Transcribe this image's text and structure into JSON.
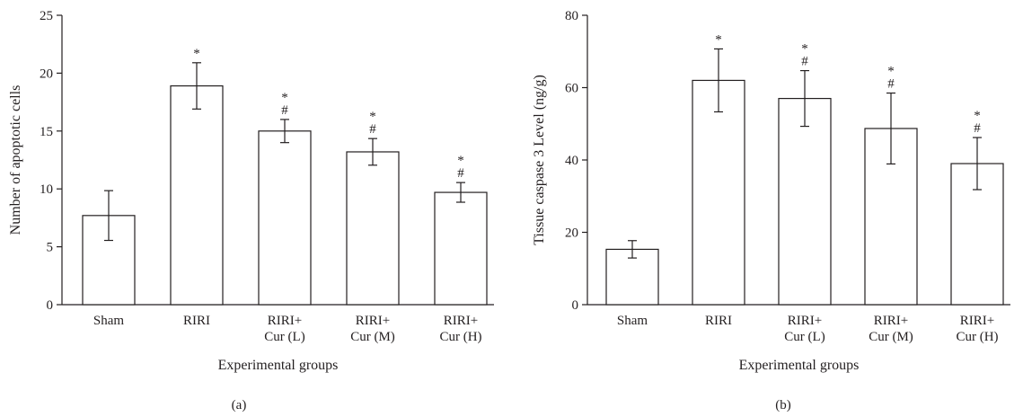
{
  "chart_data": [
    {
      "type": "bar",
      "panel_label": "(a)",
      "categories": [
        [
          "Sham"
        ],
        [
          "RIRI"
        ],
        [
          "RIRI+",
          "Cur (L)"
        ],
        [
          "RIRI+",
          "Cur (M)"
        ],
        [
          "RIRI+",
          "Cur (H)"
        ]
      ],
      "values": [
        7.7,
        18.9,
        15.0,
        13.2,
        9.7
      ],
      "errors": [
        2.15,
        2.0,
        1.0,
        1.15,
        0.85
      ],
      "annotations": [
        [],
        [
          "*"
        ],
        [
          "*",
          "#"
        ],
        [
          "*",
          "#"
        ],
        [
          "*",
          "#"
        ]
      ],
      "xlabel": "Experimental groups",
      "ylabel": "Number of apoptotic cells",
      "ylim": [
        0,
        25
      ],
      "yticks": [
        0,
        5,
        10,
        15,
        20,
        25
      ],
      "grid": false
    },
    {
      "type": "bar",
      "panel_label": "(b)",
      "categories": [
        [
          "Sham"
        ],
        [
          "RIRI"
        ],
        [
          "RIRI+",
          "Cur (L)"
        ],
        [
          "RIRI+",
          "Cur (M)"
        ],
        [
          "RIRI+",
          "Cur (H)"
        ]
      ],
      "values": [
        15.3,
        62.0,
        57.0,
        48.7,
        39.0
      ],
      "errors": [
        2.4,
        8.7,
        7.7,
        9.8,
        7.2
      ],
      "annotations": [
        [],
        [
          "*"
        ],
        [
          "*",
          "#"
        ],
        [
          "*",
          "#"
        ],
        [
          "*",
          "#"
        ]
      ],
      "xlabel": "Experimental groups",
      "ylabel": "Tissue caspase 3 Level (ng/g)",
      "ylim": [
        0,
        80
      ],
      "yticks": [
        0,
        20,
        40,
        60,
        80
      ],
      "grid": false
    }
  ]
}
